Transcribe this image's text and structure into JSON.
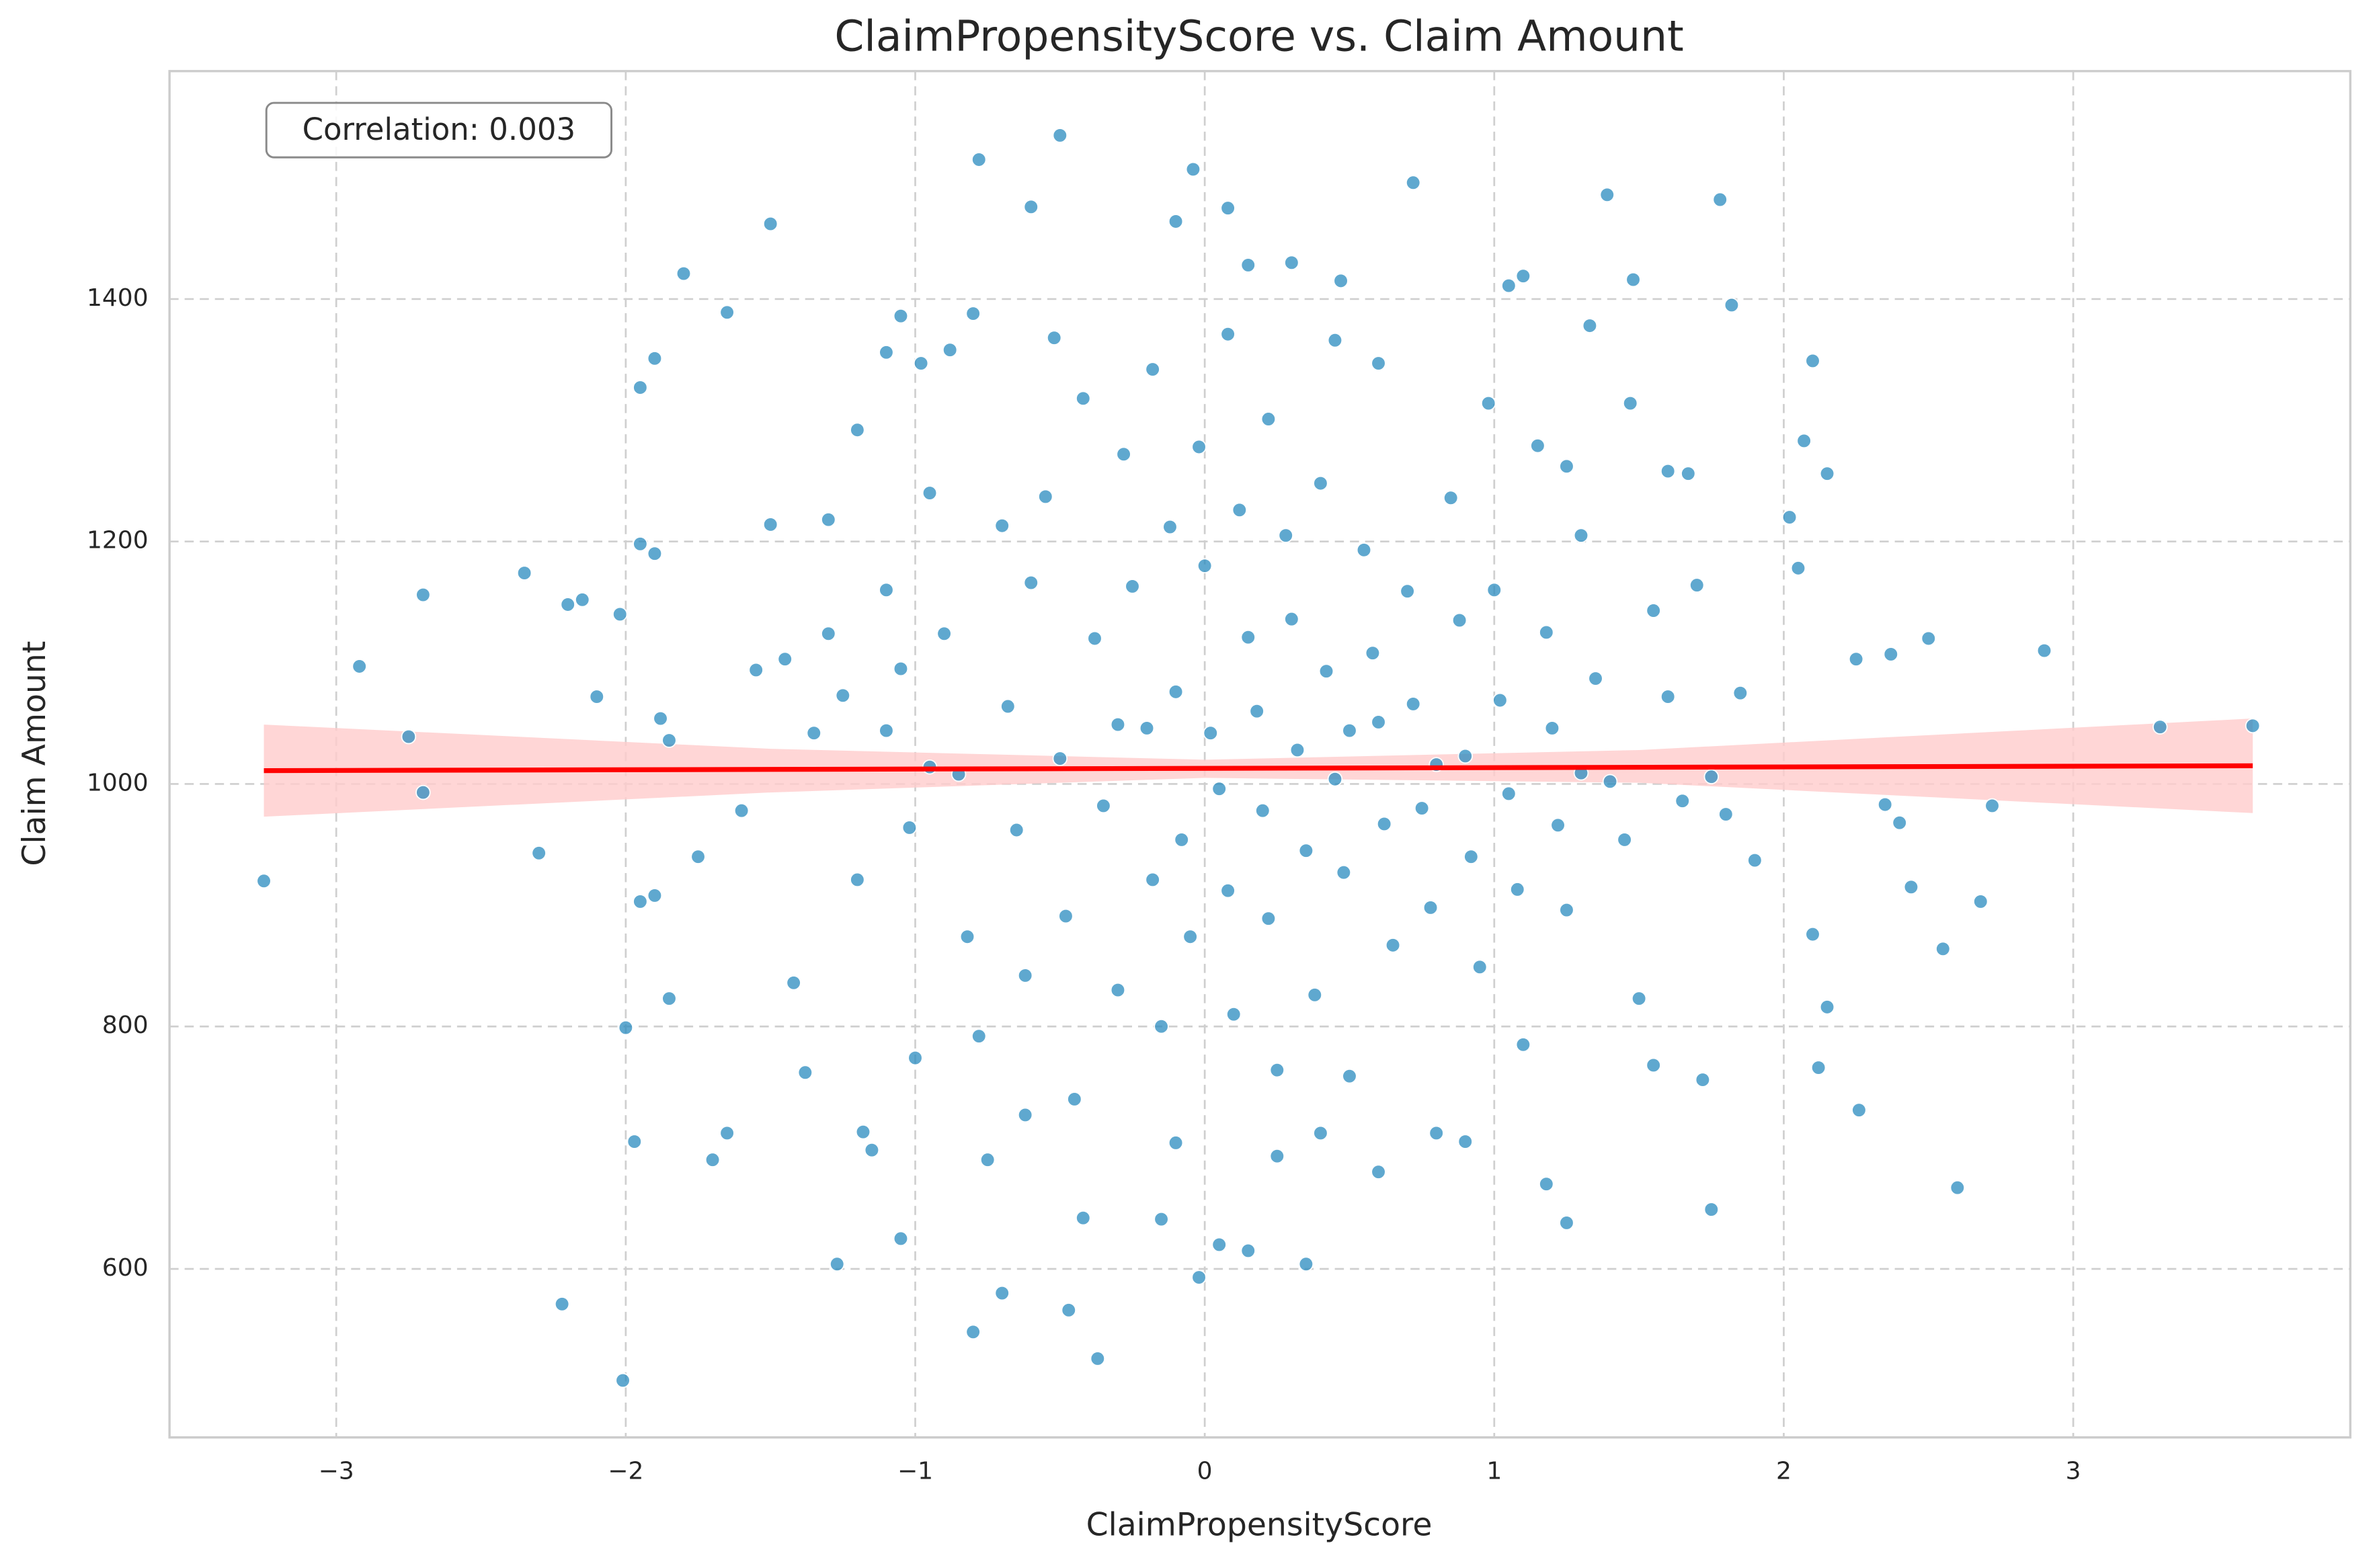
{
  "chart_data": {
    "type": "scatter",
    "title": "ClaimPropensityScore vs. Claim Amount",
    "xlabel": "ClaimPropensityScore",
    "ylabel": "Claim Amount",
    "annotation": "Correlation: 0.003",
    "color": "#2a8bbf",
    "grid": true,
    "xlim": [
      -3.576,
      3.957
    ],
    "ylim": [
      461,
      1588
    ],
    "xticks": [
      {
        "value": -3,
        "label": "−3"
      },
      {
        "value": -2,
        "label": "−2"
      },
      {
        "value": -1,
        "label": "−1"
      },
      0,
      1,
      2,
      3
    ],
    "yticks": [
      600,
      800,
      1000,
      1200,
      1400
    ],
    "x": [
      -3.25,
      -2.92,
      -2.75,
      -2.7,
      -2.7,
      -2.35,
      -2.3,
      -2.22,
      -2.01,
      -2.0,
      -1.95,
      -1.9,
      -1.8,
      -1.65,
      -1.5,
      -0.78,
      -0.5,
      -0.04,
      0.72,
      1.39,
      1.78,
      1.82,
      2.1,
      2.9,
      3.3,
      3.62,
      2.6,
      2.68,
      2.55,
      2.5,
      2.44,
      2.37,
      2.26,
      2.12,
      1.75,
      -0.37,
      -0.47,
      -0.8,
      -0.02,
      0.35,
      -1.27,
      1.25,
      -1.05,
      0.05,
      0.15,
      -0.6,
      0.08,
      -0.1,
      0.3,
      0.15,
      1.48,
      1.1,
      1.05,
      0.47,
      -1.05,
      -0.8,
      1.33,
      1.47,
      1.6,
      1.67,
      2.07,
      2.15,
      2.02,
      2.05,
      2.25,
      2.35,
      2.4,
      2.72,
      2.15,
      2.1,
      -2.2,
      -2.15,
      -2.1,
      -2.02,
      -1.95,
      -1.9,
      -1.85,
      -1.88,
      -1.9,
      -1.95,
      -1.97,
      -1.85,
      -1.75,
      -1.7,
      -1.65,
      -1.6,
      -1.55,
      -1.5,
      -1.45,
      -1.42,
      -1.38,
      -1.3,
      -1.25,
      -1.2,
      -1.18,
      -1.15,
      -1.1,
      -1.05,
      -1.02,
      -1.0,
      -0.95,
      -0.9,
      -0.85,
      -0.82,
      -0.78,
      -0.75,
      -0.7,
      -0.68,
      -0.65,
      -0.62,
      -0.6,
      -0.55,
      -0.5,
      -0.48,
      -0.45,
      -0.42,
      -0.38,
      -0.35,
      -0.3,
      -0.28,
      -0.25,
      -0.2,
      -0.18,
      -0.15,
      -0.12,
      -0.1,
      -0.08,
      -0.05,
      -0.02,
      0.0,
      0.02,
      0.05,
      0.08,
      0.1,
      0.12,
      0.15,
      0.18,
      0.2,
      0.22,
      0.25,
      0.28,
      0.3,
      0.32,
      0.35,
      0.38,
      0.4,
      0.42,
      0.45,
      0.48,
      0.5,
      0.55,
      0.58,
      0.6,
      0.62,
      0.65,
      0.7,
      0.72,
      0.75,
      0.78,
      0.8,
      0.85,
      0.88,
      0.9,
      0.92,
      0.95,
      1.0,
      1.02,
      1.05,
      1.08,
      1.1,
      1.15,
      1.18,
      1.2,
      1.22,
      1.25,
      1.3,
      1.35,
      1.4,
      1.45,
      1.5,
      1.55,
      1.6,
      1.65,
      1.7,
      1.75,
      1.8,
      1.85,
      1.9,
      1.55,
      1.72,
      -1.3,
      -1.2,
      -1.1,
      -0.98,
      -0.88,
      -0.52,
      -0.18,
      0.08,
      0.22,
      0.45,
      0.6,
      0.98,
      1.25,
      -0.95,
      -1.35,
      -1.1,
      -0.3,
      0.5,
      0.8,
      1.3,
      -0.7,
      -0.42,
      -0.15,
      0.25,
      0.6,
      1.18,
      -0.1,
      0.4,
      -0.62,
      0.9
    ],
    "values": [
      920,
      1097,
      1039,
      1156,
      993,
      1174,
      943,
      571,
      508,
      799,
      1327,
      1351,
      1421,
      1389,
      1462,
      1515,
      1535,
      1507,
      1496,
      1486,
      1482,
      1395,
      1349,
      1110,
      1047,
      1048,
      667,
      903,
      864,
      1120,
      915,
      1107,
      731,
      766,
      649,
      526,
      566,
      548,
      593,
      604,
      604,
      638,
      625,
      620,
      615,
      1476,
      1475,
      1464,
      1430,
      1428,
      1416,
      1419,
      1411,
      1415,
      1386,
      1388,
      1378,
      1314,
      1258,
      1256,
      1283,
      1256,
      1220,
      1178,
      1103,
      983,
      968,
      982,
      816,
      876,
      1148,
      1152,
      1072,
      1140,
      1198,
      1190,
      1036,
      1054,
      908,
      903,
      705,
      823,
      940,
      690,
      712,
      978,
      1094,
      1214,
      1103,
      836,
      762,
      1124,
      1073,
      921,
      713,
      698,
      1160,
      1095,
      964,
      774,
      1240,
      1124,
      1008,
      874,
      792,
      690,
      1213,
      1064,
      962,
      842,
      1166,
      1237,
      1021,
      891,
      740,
      1318,
      1120,
      982,
      830,
      1272,
      1163,
      1046,
      921,
      800,
      1212,
      1076,
      954,
      874,
      1278,
      1180,
      1042,
      996,
      912,
      810,
      1226,
      1121,
      1060,
      978,
      889,
      764,
      1205,
      1136,
      1028,
      945,
      826,
      1248,
      1093,
      1004,
      927,
      759,
      1193,
      1108,
      1051,
      967,
      867,
      1159,
      1066,
      980,
      898,
      712,
      1236,
      1135,
      1023,
      940,
      849,
      1160,
      1069,
      992,
      913,
      785,
      1279,
      1125,
      1046,
      966,
      896,
      1205,
      1087,
      1002,
      954,
      823,
      1143,
      1072,
      986,
      1164,
      1006,
      975,
      1075,
      937,
      768,
      756,
      1218,
      1292,
      1356,
      1347,
      1358,
      1368,
      1342,
      1371,
      1301,
      1366,
      1347,
      1314,
      1262,
      1014,
      1042,
      1044,
      1049,
      1044,
      1016,
      1009,
      580,
      642,
      641,
      693,
      680,
      670,
      704,
      712,
      727,
      705
    ],
    "fit": {
      "color": "#ff0000",
      "x": [
        -3.25,
        3.62
      ],
      "y": [
        1011,
        1015
      ],
      "ci_color": "#ffcccc",
      "ci_x": [
        -3.25,
        -1.5,
        0,
        1.5,
        3.62
      ],
      "ci_lower": [
        973,
        993,
        1005,
        1001,
        976
      ],
      "ci_upper": [
        1049,
        1029,
        1020,
        1028,
        1054
      ]
    }
  }
}
